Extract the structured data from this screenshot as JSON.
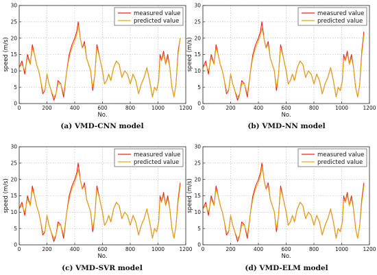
{
  "chart_data": [
    {
      "type": "line",
      "caption": "(a) VMD-CNN model",
      "xlabel": "No.",
      "ylabel": "speed (m/s)",
      "xlim": [
        0,
        1200
      ],
      "ylim": [
        0,
        30
      ],
      "xticks": [
        "0",
        "200",
        "400",
        "600",
        "800",
        "1000",
        "1200"
      ],
      "yticks": [
        "0",
        "5",
        "10",
        "15",
        "20",
        "25",
        "30"
      ],
      "grid": true,
      "legend_position": "top-right",
      "series": [
        {
          "name": "measured value",
          "color": "#ff1a1a"
        },
        {
          "name": "predicted value",
          "color": "#d6b400"
        }
      ],
      "x": [
        0,
        20,
        40,
        60,
        80,
        95,
        110,
        125,
        140,
        155,
        170,
        185,
        200,
        215,
        230,
        250,
        265,
        280,
        300,
        320,
        340,
        360,
        380,
        400,
        415,
        425,
        440,
        455,
        470,
        485,
        500,
        515,
        530,
        545,
        560,
        580,
        600,
        615,
        630,
        645,
        660,
        680,
        700,
        720,
        740,
        760,
        780,
        800,
        820,
        840,
        860,
        880,
        900,
        920,
        940,
        960,
        975,
        990,
        1005,
        1015,
        1025,
        1040,
        1055,
        1070,
        1085,
        1100,
        1115,
        1130,
        1145,
        1160
      ],
      "measured": [
        11,
        13,
        9,
        15,
        12,
        18,
        15,
        12,
        10,
        7,
        3,
        4,
        9,
        6,
        4,
        1,
        3,
        7,
        6,
        2,
        9,
        15,
        18,
        20,
        22,
        25,
        20,
        17,
        19,
        14,
        12,
        10,
        4,
        9,
        18,
        14,
        10,
        6,
        7,
        9,
        7,
        11,
        13,
        12,
        8,
        10,
        9,
        6,
        9,
        7,
        3,
        6,
        8,
        11,
        7,
        2,
        5,
        4,
        7,
        15,
        13,
        16,
        12,
        15,
        11,
        5,
        2,
        6,
        16,
        20
      ],
      "predicted": [
        11,
        12,
        10,
        14,
        12,
        17,
        15,
        12,
        10,
        7,
        4,
        4,
        9,
        6,
        4,
        2,
        3,
        6,
        6,
        3,
        9,
        14,
        17,
        19,
        21,
        24,
        20,
        17,
        18,
        14,
        12,
        10,
        5,
        9,
        17,
        14,
        10,
        6,
        7,
        9,
        7,
        11,
        13,
        12,
        8,
        10,
        9,
        6,
        9,
        7,
        3,
        6,
        8,
        11,
        7,
        2,
        5,
        4,
        7,
        14,
        13,
        15,
        12,
        14,
        11,
        5,
        2,
        6,
        15,
        20
      ]
    },
    {
      "type": "line",
      "caption": "(b) VMD-NN model",
      "xlabel": "No.",
      "ylabel": "speed (m/s)",
      "xlim": [
        0,
        1200
      ],
      "ylim": [
        0,
        30
      ],
      "xticks": [
        "0",
        "200",
        "400",
        "600",
        "800",
        "1000",
        "1200"
      ],
      "yticks": [
        "0",
        "5",
        "10",
        "15",
        "20",
        "25",
        "30"
      ],
      "grid": true,
      "legend_position": "top-right",
      "series": [
        {
          "name": "measured value",
          "color": "#ff1a1a"
        },
        {
          "name": "predicted value",
          "color": "#d6b400"
        }
      ],
      "x": [
        0,
        20,
        40,
        60,
        80,
        95,
        110,
        125,
        140,
        155,
        170,
        185,
        200,
        215,
        230,
        250,
        265,
        280,
        300,
        320,
        340,
        360,
        380,
        400,
        415,
        425,
        440,
        455,
        470,
        485,
        500,
        515,
        530,
        545,
        560,
        580,
        600,
        615,
        630,
        645,
        660,
        680,
        700,
        720,
        740,
        760,
        780,
        800,
        820,
        840,
        860,
        880,
        900,
        920,
        940,
        960,
        975,
        990,
        1005,
        1015,
        1025,
        1040,
        1055,
        1070,
        1085,
        1100,
        1115,
        1130,
        1145,
        1160
      ],
      "measured": [
        11,
        13,
        9,
        15,
        12,
        18,
        15,
        12,
        10,
        7,
        3,
        4,
        9,
        6,
        4,
        1,
        3,
        7,
        6,
        2,
        9,
        15,
        18,
        20,
        22,
        25,
        20,
        17,
        19,
        14,
        12,
        10,
        4,
        9,
        18,
        14,
        10,
        6,
        7,
        9,
        7,
        11,
        13,
        12,
        8,
        10,
        9,
        6,
        9,
        7,
        3,
        6,
        8,
        11,
        7,
        2,
        5,
        4,
        7,
        15,
        13,
        16,
        12,
        15,
        11,
        5,
        2,
        6,
        16,
        22
      ],
      "predicted": [
        11,
        12,
        10,
        14,
        12,
        17,
        15,
        12,
        10,
        7,
        4,
        4,
        9,
        6,
        4,
        2,
        3,
        6,
        6,
        3,
        9,
        14,
        17,
        19,
        21,
        23,
        20,
        17,
        18,
        14,
        12,
        10,
        5,
        9,
        17,
        14,
        10,
        6,
        7,
        9,
        7,
        11,
        13,
        12,
        8,
        10,
        9,
        6,
        9,
        7,
        3,
        6,
        8,
        11,
        7,
        2,
        5,
        4,
        7,
        14,
        13,
        15,
        12,
        14,
        11,
        5,
        2,
        6,
        15,
        21
      ]
    },
    {
      "type": "line",
      "caption": "(c) VMD-SVR model",
      "xlabel": "No.",
      "ylabel": "speed (m/s)",
      "xlim": [
        0,
        1200
      ],
      "ylim": [
        0,
        30
      ],
      "xticks": [
        "0",
        "200",
        "400",
        "600",
        "800",
        "1000",
        "1200"
      ],
      "yticks": [
        "0",
        "5",
        "10",
        "15",
        "20",
        "25",
        "30"
      ],
      "grid": true,
      "legend_position": "top-right",
      "series": [
        {
          "name": "measured value",
          "color": "#ff1a1a"
        },
        {
          "name": "predicted value",
          "color": "#d6b400"
        }
      ],
      "x": [
        0,
        20,
        40,
        60,
        80,
        95,
        110,
        125,
        140,
        155,
        170,
        185,
        200,
        215,
        230,
        250,
        265,
        280,
        300,
        320,
        340,
        360,
        380,
        400,
        415,
        425,
        440,
        455,
        470,
        485,
        500,
        515,
        530,
        545,
        560,
        580,
        600,
        615,
        630,
        645,
        660,
        680,
        700,
        720,
        740,
        760,
        780,
        800,
        820,
        840,
        860,
        880,
        900,
        920,
        940,
        960,
        975,
        990,
        1005,
        1015,
        1025,
        1040,
        1055,
        1070,
        1085,
        1100,
        1115,
        1130,
        1145,
        1160
      ],
      "measured": [
        11,
        13,
        9,
        15,
        12,
        18,
        15,
        12,
        10,
        7,
        3,
        4,
        9,
        6,
        4,
        1,
        3,
        7,
        6,
        2,
        9,
        15,
        18,
        20,
        22,
        25,
        20,
        17,
        19,
        14,
        12,
        10,
        4,
        9,
        18,
        14,
        10,
        6,
        7,
        9,
        7,
        11,
        13,
        12,
        8,
        10,
        9,
        6,
        9,
        7,
        3,
        6,
        8,
        11,
        7,
        2,
        5,
        4,
        7,
        15,
        13,
        16,
        12,
        15,
        11,
        5,
        2,
        6,
        14,
        19
      ],
      "predicted": [
        11,
        12,
        10,
        14,
        12,
        17,
        15,
        12,
        10,
        7,
        4,
        4,
        9,
        6,
        4,
        2,
        3,
        6,
        6,
        3,
        9,
        14,
        17,
        19,
        21,
        23,
        20,
        17,
        18,
        14,
        12,
        10,
        5,
        9,
        17,
        14,
        10,
        6,
        7,
        9,
        7,
        11,
        13,
        12,
        8,
        10,
        9,
        6,
        9,
        7,
        3,
        6,
        8,
        11,
        7,
        2,
        5,
        4,
        7,
        14,
        13,
        15,
        12,
        14,
        11,
        5,
        2,
        6,
        13,
        18
      ]
    },
    {
      "type": "line",
      "caption": "(d) VMD-ELM model",
      "xlabel": "No.",
      "ylabel": "speed (m/s)",
      "xlim": [
        0,
        1200
      ],
      "ylim": [
        0,
        30
      ],
      "xticks": [
        "0",
        "200",
        "400",
        "600",
        "800",
        "1000",
        "1200"
      ],
      "yticks": [
        "0",
        "5",
        "10",
        "15",
        "20",
        "25",
        "30"
      ],
      "grid": true,
      "legend_position": "top-right",
      "series": [
        {
          "name": "measured value",
          "color": "#ff1a1a"
        },
        {
          "name": "predicted value",
          "color": "#d6b400"
        }
      ],
      "x": [
        0,
        20,
        40,
        60,
        80,
        95,
        110,
        125,
        140,
        155,
        170,
        185,
        200,
        215,
        230,
        250,
        265,
        280,
        300,
        320,
        340,
        360,
        380,
        400,
        415,
        425,
        440,
        455,
        470,
        485,
        500,
        515,
        530,
        545,
        560,
        580,
        600,
        615,
        630,
        645,
        660,
        680,
        700,
        720,
        740,
        760,
        780,
        800,
        820,
        840,
        860,
        880,
        900,
        920,
        940,
        960,
        975,
        990,
        1005,
        1015,
        1025,
        1040,
        1055,
        1070,
        1085,
        1100,
        1115,
        1130,
        1145,
        1160
      ],
      "measured": [
        11,
        13,
        9,
        15,
        12,
        18,
        15,
        12,
        10,
        7,
        3,
        4,
        9,
        6,
        4,
        1,
        3,
        7,
        6,
        2,
        9,
        15,
        18,
        20,
        22,
        25,
        20,
        17,
        19,
        14,
        12,
        10,
        4,
        9,
        18,
        14,
        10,
        6,
        7,
        9,
        7,
        11,
        13,
        12,
        8,
        10,
        9,
        6,
        9,
        7,
        3,
        6,
        8,
        11,
        7,
        2,
        5,
        4,
        7,
        15,
        13,
        16,
        12,
        15,
        11,
        5,
        2,
        6,
        14,
        19
      ],
      "predicted": [
        11,
        12,
        10,
        14,
        12,
        17,
        15,
        12,
        10,
        7,
        4,
        4,
        9,
        6,
        4,
        2,
        3,
        6,
        6,
        3,
        9,
        14,
        17,
        19,
        21,
        24,
        20,
        17,
        18,
        14,
        12,
        10,
        5,
        9,
        17,
        14,
        10,
        6,
        7,
        9,
        7,
        11,
        13,
        12,
        8,
        10,
        9,
        6,
        9,
        7,
        3,
        6,
        8,
        11,
        7,
        2,
        5,
        4,
        7,
        14,
        13,
        15,
        12,
        14,
        11,
        5,
        2,
        6,
        13,
        18
      ]
    }
  ]
}
